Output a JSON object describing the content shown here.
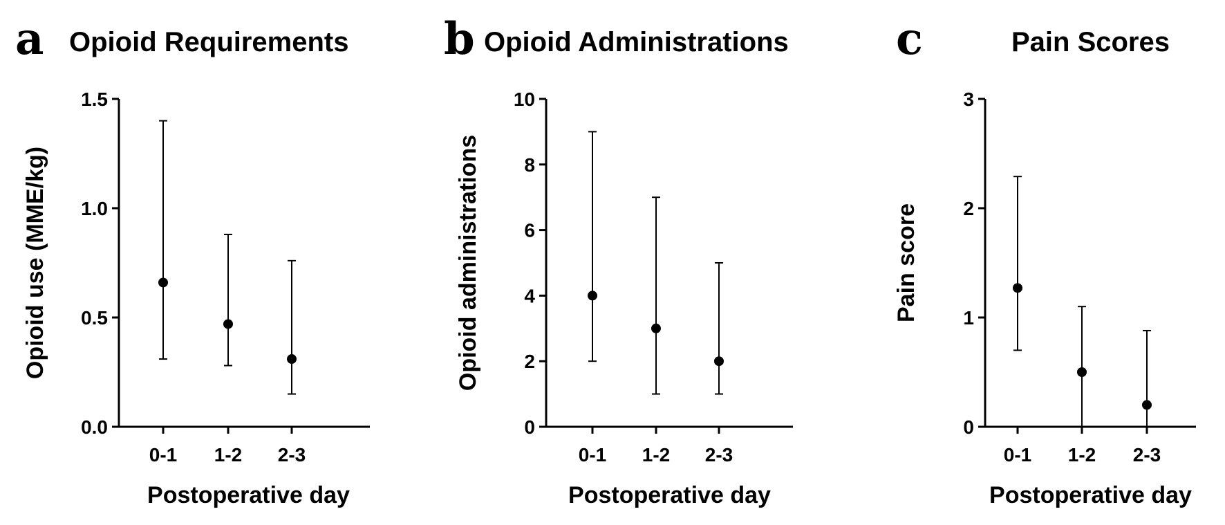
{
  "chart_data": [
    {
      "type": "scatter",
      "panel": "a",
      "title": "Opioid Requirements",
      "xlabel": "Postoperative day",
      "ylabel": "Opioid use (MME/kg)",
      "categories": [
        "0-1",
        "1-2",
        "2-3"
      ],
      "ylim": [
        0,
        1.5
      ],
      "yticks": [
        0.0,
        0.5,
        1.0,
        1.5
      ],
      "ytick_labels": [
        "0.0",
        "0.5",
        "1.0",
        "1.5"
      ],
      "series": [
        {
          "values": [
            0.66,
            0.47,
            0.31
          ],
          "lower": [
            0.31,
            0.28,
            0.15
          ],
          "upper": [
            1.4,
            0.88,
            0.76
          ]
        }
      ]
    },
    {
      "type": "scatter",
      "panel": "b",
      "title": "Opioid Administrations",
      "xlabel": "Postoperative day",
      "ylabel": "Opioid administrations",
      "categories": [
        "0-1",
        "1-2",
        "2-3"
      ],
      "ylim": [
        0,
        10
      ],
      "yticks": [
        0,
        2,
        4,
        6,
        8,
        10
      ],
      "ytick_labels": [
        "0",
        "2",
        "4",
        "6",
        "8",
        "10"
      ],
      "series": [
        {
          "values": [
            4,
            3,
            2
          ],
          "lower": [
            2,
            1,
            1
          ],
          "upper": [
            9,
            7,
            5
          ]
        }
      ]
    },
    {
      "type": "scatter",
      "panel": "c",
      "title": "Pain Scores",
      "xlabel": "Postoperative day",
      "ylabel": "Pain score",
      "categories": [
        "0-1",
        "1-2",
        "2-3"
      ],
      "ylim": [
        0,
        3
      ],
      "yticks": [
        0,
        1,
        2,
        3
      ],
      "ytick_labels": [
        "0",
        "1",
        "2",
        "3"
      ],
      "series": [
        {
          "values": [
            1.27,
            0.5,
            0.2
          ],
          "lower": [
            0.7,
            0,
            0
          ],
          "upper": [
            2.29,
            1.1,
            0.88
          ]
        }
      ]
    }
  ]
}
